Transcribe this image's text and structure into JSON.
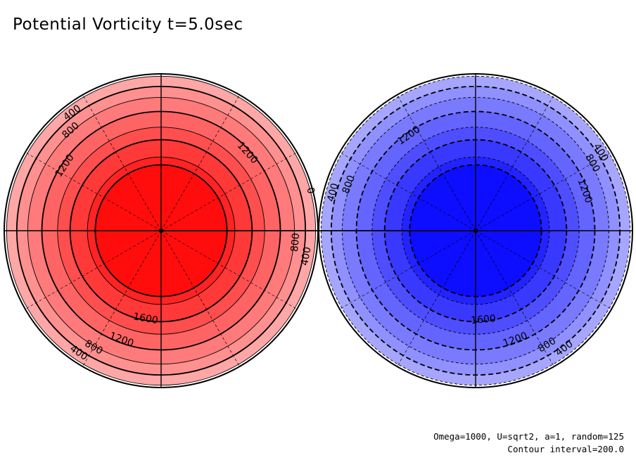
{
  "title": "Potential Vorticity t=5.0sec",
  "footer": {
    "params": "Omega=1000, U=sqrt2, a=1, random=125",
    "contour_interval": "Contour interval=200.0"
  },
  "chart_data": [
    {
      "type": "filled-contour",
      "projection": "polar",
      "hemisphere": "north",
      "fill_color": "#ff0000",
      "line_style": "solid",
      "contour_levels": [
        0,
        200,
        400,
        600,
        800,
        1000,
        1200,
        1400,
        1600,
        1800
      ],
      "contour_labels": [
        {
          "text": "400",
          "angle": 233
        },
        {
          "text": "800",
          "angle": 228
        },
        {
          "text": "1200",
          "angle": 214
        },
        {
          "text": "0",
          "angle": 345
        },
        {
          "text": "800",
          "angle": 5
        },
        {
          "text": "400",
          "angle": 10
        },
        {
          "text": "1200",
          "angle": 318
        },
        {
          "text": "1600",
          "angle": 100
        },
        {
          "text": "1200",
          "angle": 110
        },
        {
          "text": "800",
          "angle": 120
        },
        {
          "text": "400",
          "angle": 124
        }
      ]
    },
    {
      "type": "filled-contour",
      "projection": "polar",
      "hemisphere": "south",
      "fill_color": "#0000ff",
      "line_style": "dashed",
      "contour_levels": [
        0,
        -200,
        -400,
        -600,
        -800,
        -1000,
        -1200,
        -1400,
        -1600,
        -1800
      ],
      "contour_labels": [
        {
          "text": "400",
          "angle": 328
        },
        {
          "text": "800",
          "angle": 330
        },
        {
          "text": "1200",
          "angle": 340
        },
        {
          "text": "400",
          "angle": 195
        },
        {
          "text": "800",
          "angle": 200
        },
        {
          "text": "1200",
          "angle": 235
        },
        {
          "text": "1600",
          "angle": 85
        },
        {
          "text": "1200",
          "angle": 70
        },
        {
          "text": "800",
          "angle": 58
        },
        {
          "text": "400",
          "angle": 53
        }
      ]
    }
  ]
}
